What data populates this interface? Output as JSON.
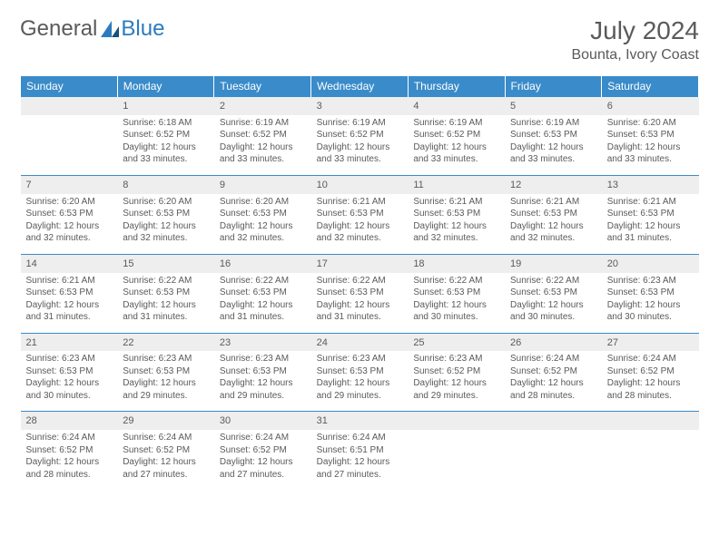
{
  "logo": {
    "word1": "General",
    "word2": "Blue"
  },
  "title": "July 2024",
  "location": "Bounta, Ivory Coast",
  "header_bg": "#3a8bc9",
  "rule_color": "#3a8bc9",
  "days_of_week": [
    "Sunday",
    "Monday",
    "Tuesday",
    "Wednesday",
    "Thursday",
    "Friday",
    "Saturday"
  ],
  "weeks": [
    {
      "nums": [
        "",
        "1",
        "2",
        "3",
        "4",
        "5",
        "6"
      ],
      "cells": [
        {
          "sunrise": "",
          "sunset": "",
          "daylight": ""
        },
        {
          "sunrise": "Sunrise: 6:18 AM",
          "sunset": "Sunset: 6:52 PM",
          "daylight": "Daylight: 12 hours and 33 minutes."
        },
        {
          "sunrise": "Sunrise: 6:19 AM",
          "sunset": "Sunset: 6:52 PM",
          "daylight": "Daylight: 12 hours and 33 minutes."
        },
        {
          "sunrise": "Sunrise: 6:19 AM",
          "sunset": "Sunset: 6:52 PM",
          "daylight": "Daylight: 12 hours and 33 minutes."
        },
        {
          "sunrise": "Sunrise: 6:19 AM",
          "sunset": "Sunset: 6:52 PM",
          "daylight": "Daylight: 12 hours and 33 minutes."
        },
        {
          "sunrise": "Sunrise: 6:19 AM",
          "sunset": "Sunset: 6:53 PM",
          "daylight": "Daylight: 12 hours and 33 minutes."
        },
        {
          "sunrise": "Sunrise: 6:20 AM",
          "sunset": "Sunset: 6:53 PM",
          "daylight": "Daylight: 12 hours and 33 minutes."
        }
      ]
    },
    {
      "nums": [
        "7",
        "8",
        "9",
        "10",
        "11",
        "12",
        "13"
      ],
      "cells": [
        {
          "sunrise": "Sunrise: 6:20 AM",
          "sunset": "Sunset: 6:53 PM",
          "daylight": "Daylight: 12 hours and 32 minutes."
        },
        {
          "sunrise": "Sunrise: 6:20 AM",
          "sunset": "Sunset: 6:53 PM",
          "daylight": "Daylight: 12 hours and 32 minutes."
        },
        {
          "sunrise": "Sunrise: 6:20 AM",
          "sunset": "Sunset: 6:53 PM",
          "daylight": "Daylight: 12 hours and 32 minutes."
        },
        {
          "sunrise": "Sunrise: 6:21 AM",
          "sunset": "Sunset: 6:53 PM",
          "daylight": "Daylight: 12 hours and 32 minutes."
        },
        {
          "sunrise": "Sunrise: 6:21 AM",
          "sunset": "Sunset: 6:53 PM",
          "daylight": "Daylight: 12 hours and 32 minutes."
        },
        {
          "sunrise": "Sunrise: 6:21 AM",
          "sunset": "Sunset: 6:53 PM",
          "daylight": "Daylight: 12 hours and 32 minutes."
        },
        {
          "sunrise": "Sunrise: 6:21 AM",
          "sunset": "Sunset: 6:53 PM",
          "daylight": "Daylight: 12 hours and 31 minutes."
        }
      ]
    },
    {
      "nums": [
        "14",
        "15",
        "16",
        "17",
        "18",
        "19",
        "20"
      ],
      "cells": [
        {
          "sunrise": "Sunrise: 6:21 AM",
          "sunset": "Sunset: 6:53 PM",
          "daylight": "Daylight: 12 hours and 31 minutes."
        },
        {
          "sunrise": "Sunrise: 6:22 AM",
          "sunset": "Sunset: 6:53 PM",
          "daylight": "Daylight: 12 hours and 31 minutes."
        },
        {
          "sunrise": "Sunrise: 6:22 AM",
          "sunset": "Sunset: 6:53 PM",
          "daylight": "Daylight: 12 hours and 31 minutes."
        },
        {
          "sunrise": "Sunrise: 6:22 AM",
          "sunset": "Sunset: 6:53 PM",
          "daylight": "Daylight: 12 hours and 31 minutes."
        },
        {
          "sunrise": "Sunrise: 6:22 AM",
          "sunset": "Sunset: 6:53 PM",
          "daylight": "Daylight: 12 hours and 30 minutes."
        },
        {
          "sunrise": "Sunrise: 6:22 AM",
          "sunset": "Sunset: 6:53 PM",
          "daylight": "Daylight: 12 hours and 30 minutes."
        },
        {
          "sunrise": "Sunrise: 6:23 AM",
          "sunset": "Sunset: 6:53 PM",
          "daylight": "Daylight: 12 hours and 30 minutes."
        }
      ]
    },
    {
      "nums": [
        "21",
        "22",
        "23",
        "24",
        "25",
        "26",
        "27"
      ],
      "cells": [
        {
          "sunrise": "Sunrise: 6:23 AM",
          "sunset": "Sunset: 6:53 PM",
          "daylight": "Daylight: 12 hours and 30 minutes."
        },
        {
          "sunrise": "Sunrise: 6:23 AM",
          "sunset": "Sunset: 6:53 PM",
          "daylight": "Daylight: 12 hours and 29 minutes."
        },
        {
          "sunrise": "Sunrise: 6:23 AM",
          "sunset": "Sunset: 6:53 PM",
          "daylight": "Daylight: 12 hours and 29 minutes."
        },
        {
          "sunrise": "Sunrise: 6:23 AM",
          "sunset": "Sunset: 6:53 PM",
          "daylight": "Daylight: 12 hours and 29 minutes."
        },
        {
          "sunrise": "Sunrise: 6:23 AM",
          "sunset": "Sunset: 6:52 PM",
          "daylight": "Daylight: 12 hours and 29 minutes."
        },
        {
          "sunrise": "Sunrise: 6:24 AM",
          "sunset": "Sunset: 6:52 PM",
          "daylight": "Daylight: 12 hours and 28 minutes."
        },
        {
          "sunrise": "Sunrise: 6:24 AM",
          "sunset": "Sunset: 6:52 PM",
          "daylight": "Daylight: 12 hours and 28 minutes."
        }
      ]
    },
    {
      "nums": [
        "28",
        "29",
        "30",
        "31",
        "",
        "",
        ""
      ],
      "cells": [
        {
          "sunrise": "Sunrise: 6:24 AM",
          "sunset": "Sunset: 6:52 PM",
          "daylight": "Daylight: 12 hours and 28 minutes."
        },
        {
          "sunrise": "Sunrise: 6:24 AM",
          "sunset": "Sunset: 6:52 PM",
          "daylight": "Daylight: 12 hours and 27 minutes."
        },
        {
          "sunrise": "Sunrise: 6:24 AM",
          "sunset": "Sunset: 6:52 PM",
          "daylight": "Daylight: 12 hours and 27 minutes."
        },
        {
          "sunrise": "Sunrise: 6:24 AM",
          "sunset": "Sunset: 6:51 PM",
          "daylight": "Daylight: 12 hours and 27 minutes."
        },
        {
          "sunrise": "",
          "sunset": "",
          "daylight": ""
        },
        {
          "sunrise": "",
          "sunset": "",
          "daylight": ""
        },
        {
          "sunrise": "",
          "sunset": "",
          "daylight": ""
        }
      ]
    }
  ]
}
